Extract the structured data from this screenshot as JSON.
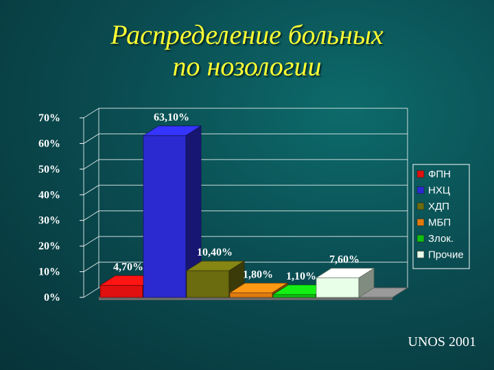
{
  "slide": {
    "title_line1": "Распределение больных",
    "title_line2": "по нозологии",
    "source": "UNOS 2001"
  },
  "chart_data": {
    "type": "bar",
    "title": "",
    "xlabel": "",
    "ylabel": "",
    "ylim": [
      0,
      70
    ],
    "yticks": [
      "0%",
      "10%",
      "20%",
      "30%",
      "40%",
      "50%",
      "60%",
      "70%"
    ],
    "grid": true,
    "legend_position": "right",
    "series": [
      {
        "name": "ФПН",
        "value": 4.7,
        "label": "4,70%",
        "color": "#e01010"
      },
      {
        "name": "НХЦ",
        "value": 63.1,
        "label": "63,10%",
        "color": "#2a2ad0"
      },
      {
        "name": "ХДП",
        "value": 10.4,
        "label": "10,40%",
        "color": "#6b6b10"
      },
      {
        "name": "МБП",
        "value": 1.8,
        "label": "1,80%",
        "color": "#e07a10"
      },
      {
        "name": "Злок.",
        "value": 1.1,
        "label": "1,10%",
        "color": "#10c010"
      },
      {
        "name": "Прочие",
        "value": 7.6,
        "label": "7,60%",
        "color": "#e8ffe8"
      }
    ]
  }
}
